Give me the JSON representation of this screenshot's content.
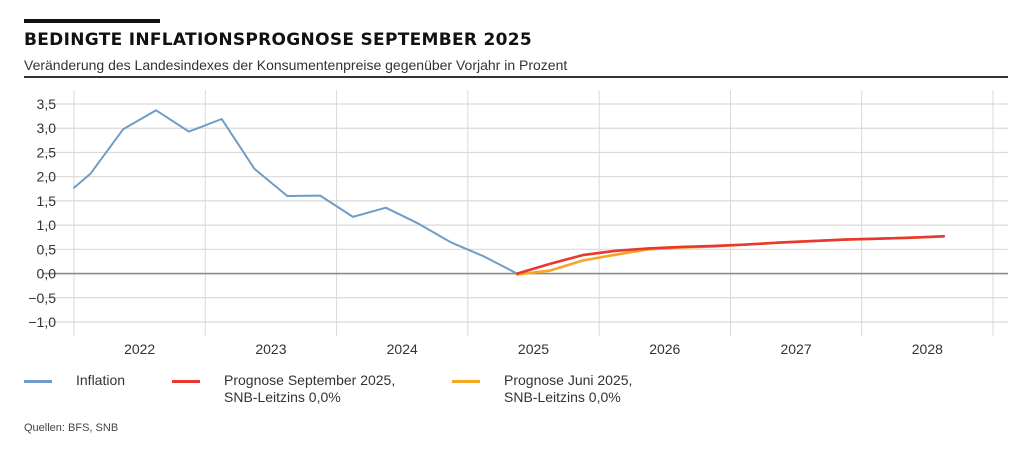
{
  "header": {
    "title": "BEDINGTE INFLATIONSPROGNOSE SEPTEMBER 2025",
    "subtitle": "Veränderung des Landesindexes der Konsumentenpreise gegenüber Vorjahr in Prozent"
  },
  "source": "Quellen: BFS, SNB",
  "colors": {
    "inflation": "#6f9cc8",
    "prognose_sep": "#e8382f",
    "prognose_jun": "#f6a623",
    "grid": "#d9d9d9",
    "zero_line": "#8a8a8a"
  },
  "chart_data": {
    "type": "line",
    "title": "BEDINGTE INFLATIONSPROGNOSE SEPTEMBER 2025",
    "subtitle": "Veränderung des Landesindexes der Konsumentenpreise gegenüber Vorjahr in Prozent",
    "xlabel": "",
    "ylabel": "",
    "xlim": [
      2022.0,
      2029.0
    ],
    "ylim": [
      -1.0,
      3.5
    ],
    "yticks": [
      3.5,
      3.0,
      2.5,
      2.0,
      1.5,
      1.0,
      0.5,
      0.0,
      -0.5,
      -1.0
    ],
    "ytick_labels": [
      "3,5",
      "3,0",
      "2,5",
      "2,0",
      "1,5",
      "1,0",
      "0,5",
      "0,0",
      "−0,5",
      "−1,0"
    ],
    "xtick_labels": [
      "2022",
      "2023",
      "2024",
      "2025",
      "2026",
      "2027",
      "2028"
    ],
    "grid": true,
    "legend_position": "bottom",
    "series": [
      {
        "name": "Inflation",
        "color_key": "inflation",
        "x": [
          2022.0,
          2022.125,
          2022.375,
          2022.625,
          2022.875,
          2023.125,
          2023.375,
          2023.625,
          2023.875,
          2024.125,
          2024.375,
          2024.625,
          2024.875,
          2025.125,
          2025.375
        ],
        "y": [
          1.77,
          2.06,
          2.98,
          3.37,
          2.93,
          3.19,
          2.16,
          1.6,
          1.61,
          1.17,
          1.36,
          1.03,
          0.64,
          0.35,
          0.0
        ]
      },
      {
        "name": "Prognose Juni 2025, SNB-Leitzins 0,0%",
        "color_key": "prognose_jun",
        "x": [
          2025.375,
          2025.625,
          2025.875,
          2026.125,
          2026.375,
          2026.625,
          2026.875,
          2027.125,
          2027.375,
          2027.625,
          2027.875,
          2028.125,
          2028.375,
          2028.625
        ],
        "y": [
          -0.02,
          0.06,
          0.27,
          0.39,
          0.5,
          0.54,
          0.56,
          0.6,
          0.64,
          0.67,
          0.7,
          0.72,
          0.74,
          0.77
        ]
      },
      {
        "name": "Prognose September 2025, SNB-Leitzins 0,0%",
        "color_key": "prognose_sep",
        "x": [
          2025.375,
          2025.625,
          2025.875,
          2026.125,
          2026.375,
          2026.625,
          2026.875,
          2027.125,
          2027.375,
          2027.625,
          2027.875,
          2028.125,
          2028.375,
          2028.625
        ],
        "y": [
          0.0,
          0.2,
          0.38,
          0.47,
          0.52,
          0.55,
          0.57,
          0.6,
          0.64,
          0.67,
          0.7,
          0.72,
          0.74,
          0.77
        ]
      }
    ]
  },
  "legend": [
    {
      "label_line1": "Inflation",
      "label_line2": "",
      "color_key": "inflation"
    },
    {
      "label_line1": "Prognose September 2025,",
      "label_line2": "SNB-Leitzins 0,0%",
      "color_key": "prognose_sep"
    },
    {
      "label_line1": "Prognose Juni 2025,",
      "label_line2": "SNB-Leitzins 0,0%",
      "color_key": "prognose_jun"
    }
  ]
}
